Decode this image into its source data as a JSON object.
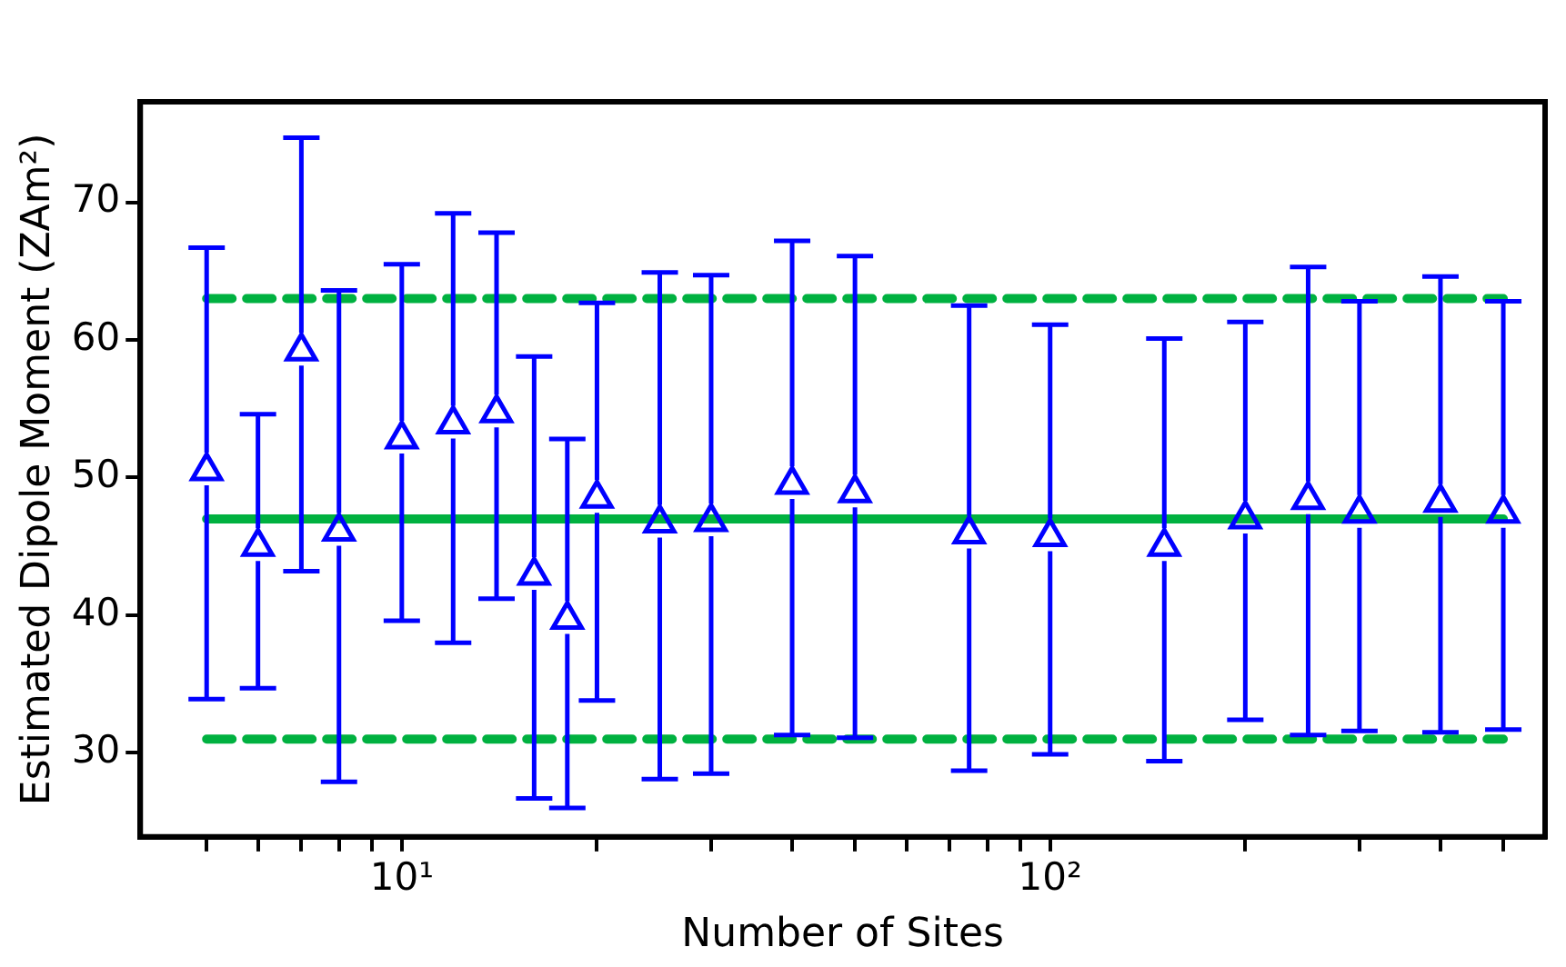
{
  "chart_data": {
    "type": "scatter",
    "xlabel": "Number of Sites",
    "ylabel": "Estimated Dipole Moment (ZAm²)",
    "log": "x",
    "grid": false,
    "legend": false,
    "marker": "triangle",
    "xlim": [
      3.95,
      580
    ],
    "ylim": [
      23.9,
      77.3
    ],
    "xticks": [
      {
        "value": 5,
        "label": null
      },
      {
        "value": 6,
        "label": null
      },
      {
        "value": 7,
        "label": null
      },
      {
        "value": 8,
        "label": null
      },
      {
        "value": 9,
        "label": null
      },
      {
        "value": 10,
        "label": "10¹"
      },
      {
        "value": 20,
        "label": null
      },
      {
        "value": 30,
        "label": null
      },
      {
        "value": 40,
        "label": null
      },
      {
        "value": 50,
        "label": null
      },
      {
        "value": 60,
        "label": null
      },
      {
        "value": 70,
        "label": null
      },
      {
        "value": 80,
        "label": null
      },
      {
        "value": 90,
        "label": null
      },
      {
        "value": 100,
        "label": "10²"
      },
      {
        "value": 200,
        "label": null
      },
      {
        "value": 300,
        "label": null
      },
      {
        "value": 400,
        "label": null
      },
      {
        "value": 500,
        "label": null
      }
    ],
    "yticks": [
      30,
      40,
      50,
      60,
      70
    ],
    "series": [
      {
        "color": "#0000ff",
        "x": [
          5,
          6,
          7,
          8,
          10,
          12,
          14,
          16,
          18,
          20,
          25,
          30,
          40,
          50,
          75,
          100,
          150,
          200,
          250,
          300,
          400,
          500
        ],
        "values": [
          50.5,
          45.0,
          59.2,
          46.1,
          52.8,
          53.9,
          54.7,
          42.9,
          39.7,
          48.5,
          46.7,
          46.8,
          49.5,
          48.9,
          45.9,
          45.7,
          45.0,
          47.0,
          48.4,
          47.4,
          48.2,
          47.4
        ],
        "errors": [
          [
            33.9,
            66.7
          ],
          [
            34.7,
            54.6
          ],
          [
            43.2,
            74.7
          ],
          [
            27.9,
            63.6
          ],
          [
            39.6,
            65.5
          ],
          [
            38.0,
            69.2
          ],
          [
            41.2,
            67.8
          ],
          [
            26.7,
            58.8
          ],
          [
            26.0,
            52.8
          ],
          [
            33.8,
            62.7
          ],
          [
            28.1,
            64.9
          ],
          [
            28.5,
            64.7
          ],
          [
            31.3,
            67.2
          ],
          [
            31.1,
            66.1
          ],
          [
            28.7,
            62.5
          ],
          [
            29.9,
            61.1
          ],
          [
            29.4,
            60.1
          ],
          [
            32.4,
            61.3
          ],
          [
            31.3,
            65.3
          ],
          [
            31.6,
            62.8
          ],
          [
            31.5,
            64.6
          ],
          [
            31.7,
            62.8
          ]
        ]
      }
    ],
    "ref_lines": [
      {
        "axis": "y",
        "value": 47,
        "color": "#00b140",
        "line_style": "solid"
      },
      {
        "axis": "y",
        "value": 63,
        "color": "#00b140",
        "line_style": "dashed"
      },
      {
        "axis": "y",
        "value": 31,
        "color": "#00b140",
        "line_style": "dashed"
      }
    ]
  }
}
